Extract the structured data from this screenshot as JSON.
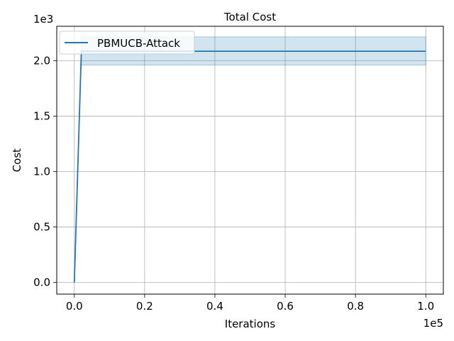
{
  "chart_data": {
    "type": "line",
    "title": "Total Cost",
    "xlabel": "Iterations",
    "ylabel": "Cost",
    "x_scale_label": "1e5",
    "y_scale_label": "1e3",
    "xlim": [
      -5000,
      105000
    ],
    "ylim": [
      -105,
      2310
    ],
    "x_ticks": [
      0,
      20000,
      40000,
      60000,
      80000,
      100000
    ],
    "x_tick_labels": [
      "0.0",
      "0.2",
      "0.4",
      "0.6",
      "0.8",
      "1.0"
    ],
    "y_ticks": [
      0,
      500,
      1000,
      1500,
      2000
    ],
    "y_tick_labels": [
      "0.0",
      "0.5",
      "1.0",
      "1.5",
      "2.0"
    ],
    "grid": true,
    "legend_position": "upper-left",
    "colors": {
      "line": "#1f77b4",
      "band": "#1f77b4",
      "grid": "#b0b0b0",
      "axes": "#000000"
    },
    "series": [
      {
        "name": "PBMUCB-Attack",
        "x": [
          0,
          2000,
          100000
        ],
        "y": [
          0,
          2085,
          2085
        ],
        "band": {
          "x": [
            2000,
            100000
          ],
          "lower": [
            1960,
            1960
          ],
          "upper": [
            2215,
            2215
          ]
        }
      }
    ]
  }
}
